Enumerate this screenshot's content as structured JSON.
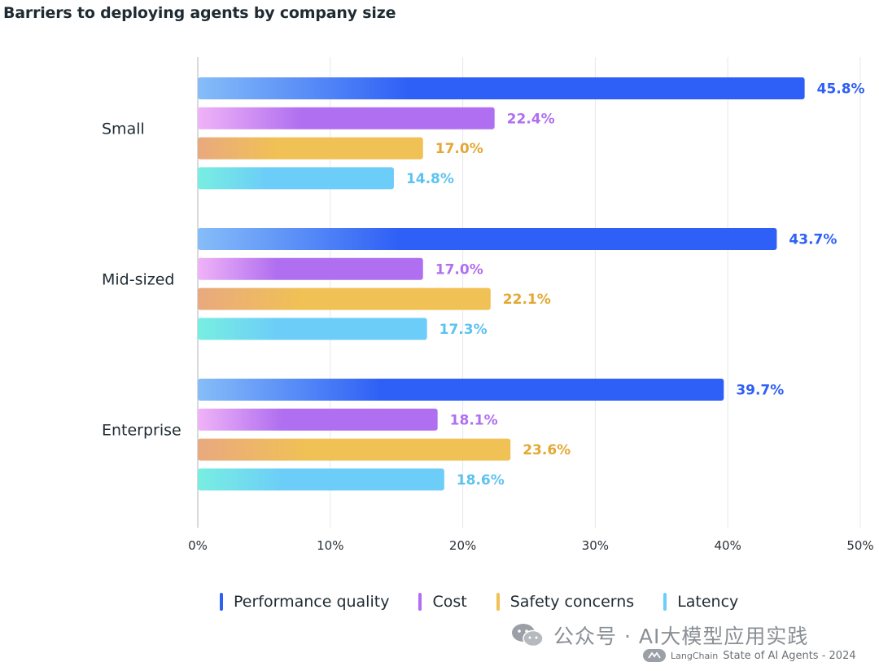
{
  "title": "Barriers to deploying agents by company size",
  "chart_data": {
    "type": "bar",
    "orientation": "horizontal",
    "title": "Barriers to deploying agents by company size",
    "categories": [
      "Small",
      "Mid-sized",
      "Enterprise"
    ],
    "series": [
      {
        "name": "Performance quality",
        "color": "#2e5ff6",
        "values": [
          45.8,
          43.7,
          39.7
        ]
      },
      {
        "name": "Cost",
        "color": "#b06ff0",
        "values": [
          22.4,
          17.0,
          18.1
        ]
      },
      {
        "name": "Safety concerns",
        "color": "#f0c155",
        "values": [
          17.0,
          22.1,
          23.6
        ]
      },
      {
        "name": "Latency",
        "color": "#6ccdf8",
        "values": [
          14.8,
          17.3,
          18.6
        ]
      }
    ],
    "value_labels": [
      [
        "45.8%",
        "43.7%",
        "39.7%"
      ],
      [
        "22.4%",
        "17.0%",
        "18.1%"
      ],
      [
        "17.0%",
        "22.1%",
        "23.6%"
      ],
      [
        "14.8%",
        "17.3%",
        "18.6%"
      ]
    ],
    "xlim": [
      0,
      50
    ],
    "xticks": [
      0,
      10,
      20,
      30,
      40,
      50
    ],
    "xtick_labels": [
      "0%",
      "10%",
      "20%",
      "30%",
      "40%",
      "50%"
    ],
    "grid": "vertical",
    "legend_position": "bottom"
  },
  "label_colors": [
    "#2e5ff6",
    "#b06ff0",
    "#e3a833",
    "#5cc3f0"
  ],
  "gradient_starts": [
    "#86bdf8",
    "#f0b3f7",
    "#e9a97f",
    "#78eee1"
  ],
  "watermark": {
    "text": "公众号 · AI大模型应用实践",
    "icon": "wechat-icon"
  },
  "footer": {
    "brand": "LangChain",
    "text": "State of AI Agents - 2024",
    "icon": "langchain-icon"
  }
}
